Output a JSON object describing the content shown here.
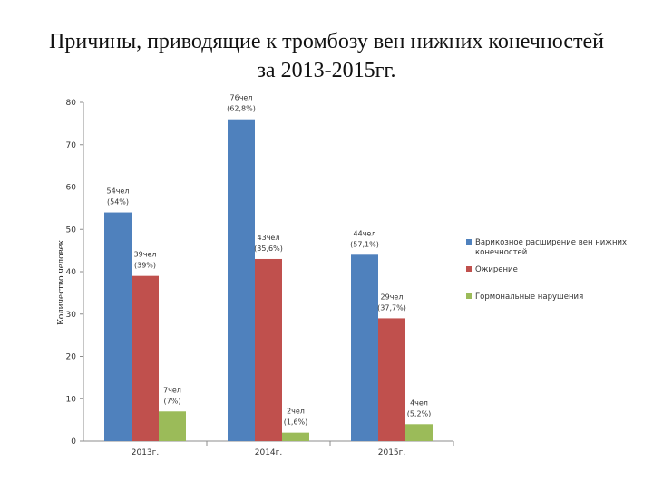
{
  "title_line1": "Причины, приводящие к тромбозу вен нижних конечностей",
  "title_line2": "за 2013-2015гг.",
  "chart_data": {
    "type": "bar",
    "title": "Причины, приводящие к тромбозу вен нижних конечностей за 2013-2015гг.",
    "ylabel": "Количество человек",
    "xlabel": "",
    "categories": [
      "2013г.",
      "2014г.",
      "2015г."
    ],
    "ylim": [
      0,
      80
    ],
    "yticks": [
      0,
      10,
      20,
      30,
      40,
      50,
      60,
      70,
      80
    ],
    "grid": false,
    "legend_position": "right",
    "series": [
      {
        "name": "Варикозное расширение вен нижних конечностей",
        "legend_lines": [
          "Варикозное расширение вен нижних",
          "конечностей"
        ],
        "color": "#4f81bd",
        "values": [
          54,
          76,
          44
        ],
        "labels": [
          [
            "54чел",
            "(54%)"
          ],
          [
            "76чел",
            "(62,8%)"
          ],
          [
            "44чел",
            "(57,1%)"
          ]
        ]
      },
      {
        "name": "Ожирение",
        "legend_lines": [
          "Ожирение"
        ],
        "color": "#c0504d",
        "values": [
          39,
          43,
          29
        ],
        "labels": [
          [
            "39чел",
            "(39%)"
          ],
          [
            "43чел",
            "(35,6%)"
          ],
          [
            "29чел",
            "(37,7%)"
          ]
        ]
      },
      {
        "name": "Гормональные нарушения",
        "legend_lines": [
          "Гормональные нарушения"
        ],
        "color": "#9bbb59",
        "values": [
          7,
          2,
          4
        ],
        "labels": [
          [
            "7чел",
            "(7%)"
          ],
          [
            "2чел",
            "(1,6%)"
          ],
          [
            "4чел",
            "(5,2%)"
          ]
        ]
      }
    ]
  }
}
